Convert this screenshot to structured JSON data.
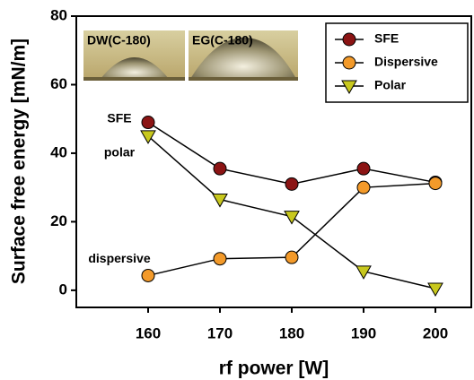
{
  "chart_data": {
    "type": "line",
    "x_label": "rf power [W]",
    "y_label": "Surface free energy [mN/m]",
    "x": [
      160,
      170,
      180,
      190,
      200
    ],
    "series": [
      {
        "name": "SFE",
        "color": "#8b1414",
        "marker": "circle",
        "values": [
          49,
          35.5,
          31,
          35.5,
          31.5
        ]
      },
      {
        "name": "Dispersive",
        "color": "#f39a2a",
        "marker": "circle",
        "values": [
          4.3,
          9.2,
          9.6,
          30,
          31.2
        ]
      },
      {
        "name": "Polar",
        "color": "#c8c81e",
        "marker": "triangle-down",
        "values": [
          45,
          26.5,
          21.5,
          5.5,
          0.5
        ]
      }
    ],
    "xlim": [
      150,
      205
    ],
    "ylim": [
      -5,
      80
    ],
    "xticks": [
      160,
      170,
      180,
      190,
      200
    ],
    "yticks": [
      0,
      20,
      40,
      60,
      80
    ],
    "legend": "top-right",
    "annotations": [
      {
        "text": "SFE",
        "x": 156,
        "y": 50
      },
      {
        "text": "polar",
        "x": 156,
        "y": 40
      },
      {
        "text": "dispersive",
        "x": 156,
        "y": 9
      }
    ],
    "photo_labels": [
      "DW(C-180)",
      "EG(C-180)"
    ]
  }
}
